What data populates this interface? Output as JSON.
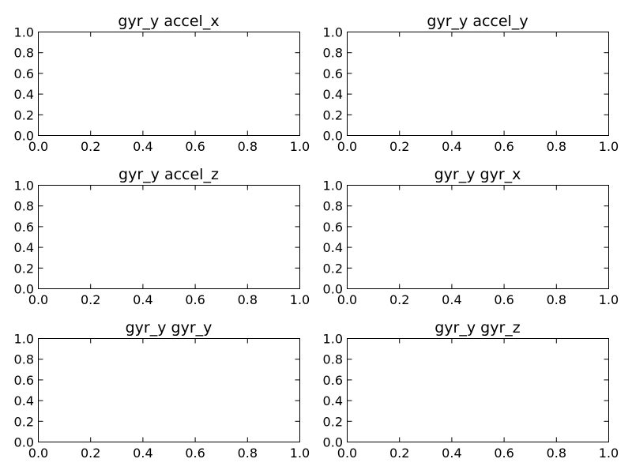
{
  "chart_data": [
    {
      "type": "scatter",
      "title": "gyr_y accel_x",
      "xlim": [
        0.0,
        1.0
      ],
      "ylim": [
        0.0,
        1.0
      ],
      "x_ticks": [
        "0.0",
        "0.2",
        "0.4",
        "0.6",
        "0.8",
        "1.0"
      ],
      "y_ticks": [
        "0.0",
        "0.2",
        "0.4",
        "0.6",
        "0.8",
        "1.0"
      ],
      "series": [],
      "grid": false
    },
    {
      "type": "scatter",
      "title": "gyr_y accel_y",
      "xlim": [
        0.0,
        1.0
      ],
      "ylim": [
        0.0,
        1.0
      ],
      "x_ticks": [
        "0.0",
        "0.2",
        "0.4",
        "0.6",
        "0.8",
        "1.0"
      ],
      "y_ticks": [
        "0.0",
        "0.2",
        "0.4",
        "0.6",
        "0.8",
        "1.0"
      ],
      "series": [],
      "grid": false
    },
    {
      "type": "scatter",
      "title": "gyr_y accel_z",
      "xlim": [
        0.0,
        1.0
      ],
      "ylim": [
        0.0,
        1.0
      ],
      "x_ticks": [
        "0.0",
        "0.2",
        "0.4",
        "0.6",
        "0.8",
        "1.0"
      ],
      "y_ticks": [
        "0.0",
        "0.2",
        "0.4",
        "0.6",
        "0.8",
        "1.0"
      ],
      "series": [],
      "grid": false
    },
    {
      "type": "scatter",
      "title": "gyr_y gyr_x",
      "xlim": [
        0.0,
        1.0
      ],
      "ylim": [
        0.0,
        1.0
      ],
      "x_ticks": [
        "0.0",
        "0.2",
        "0.4",
        "0.6",
        "0.8",
        "1.0"
      ],
      "y_ticks": [
        "0.0",
        "0.2",
        "0.4",
        "0.6",
        "0.8",
        "1.0"
      ],
      "series": [],
      "grid": false
    },
    {
      "type": "scatter",
      "title": "gyr_y gyr_y",
      "xlim": [
        0.0,
        1.0
      ],
      "ylim": [
        0.0,
        1.0
      ],
      "x_ticks": [
        "0.0",
        "0.2",
        "0.4",
        "0.6",
        "0.8",
        "1.0"
      ],
      "y_ticks": [
        "0.0",
        "0.2",
        "0.4",
        "0.6",
        "0.8",
        "1.0"
      ],
      "series": [],
      "grid": false
    },
    {
      "type": "scatter",
      "title": "gyr_y gyr_z",
      "xlim": [
        0.0,
        1.0
      ],
      "ylim": [
        0.0,
        1.0
      ],
      "x_ticks": [
        "0.0",
        "0.2",
        "0.4",
        "0.6",
        "0.8",
        "1.0"
      ],
      "y_ticks": [
        "0.0",
        "0.2",
        "0.4",
        "0.6",
        "0.8",
        "1.0"
      ],
      "series": [],
      "grid": false
    }
  ]
}
